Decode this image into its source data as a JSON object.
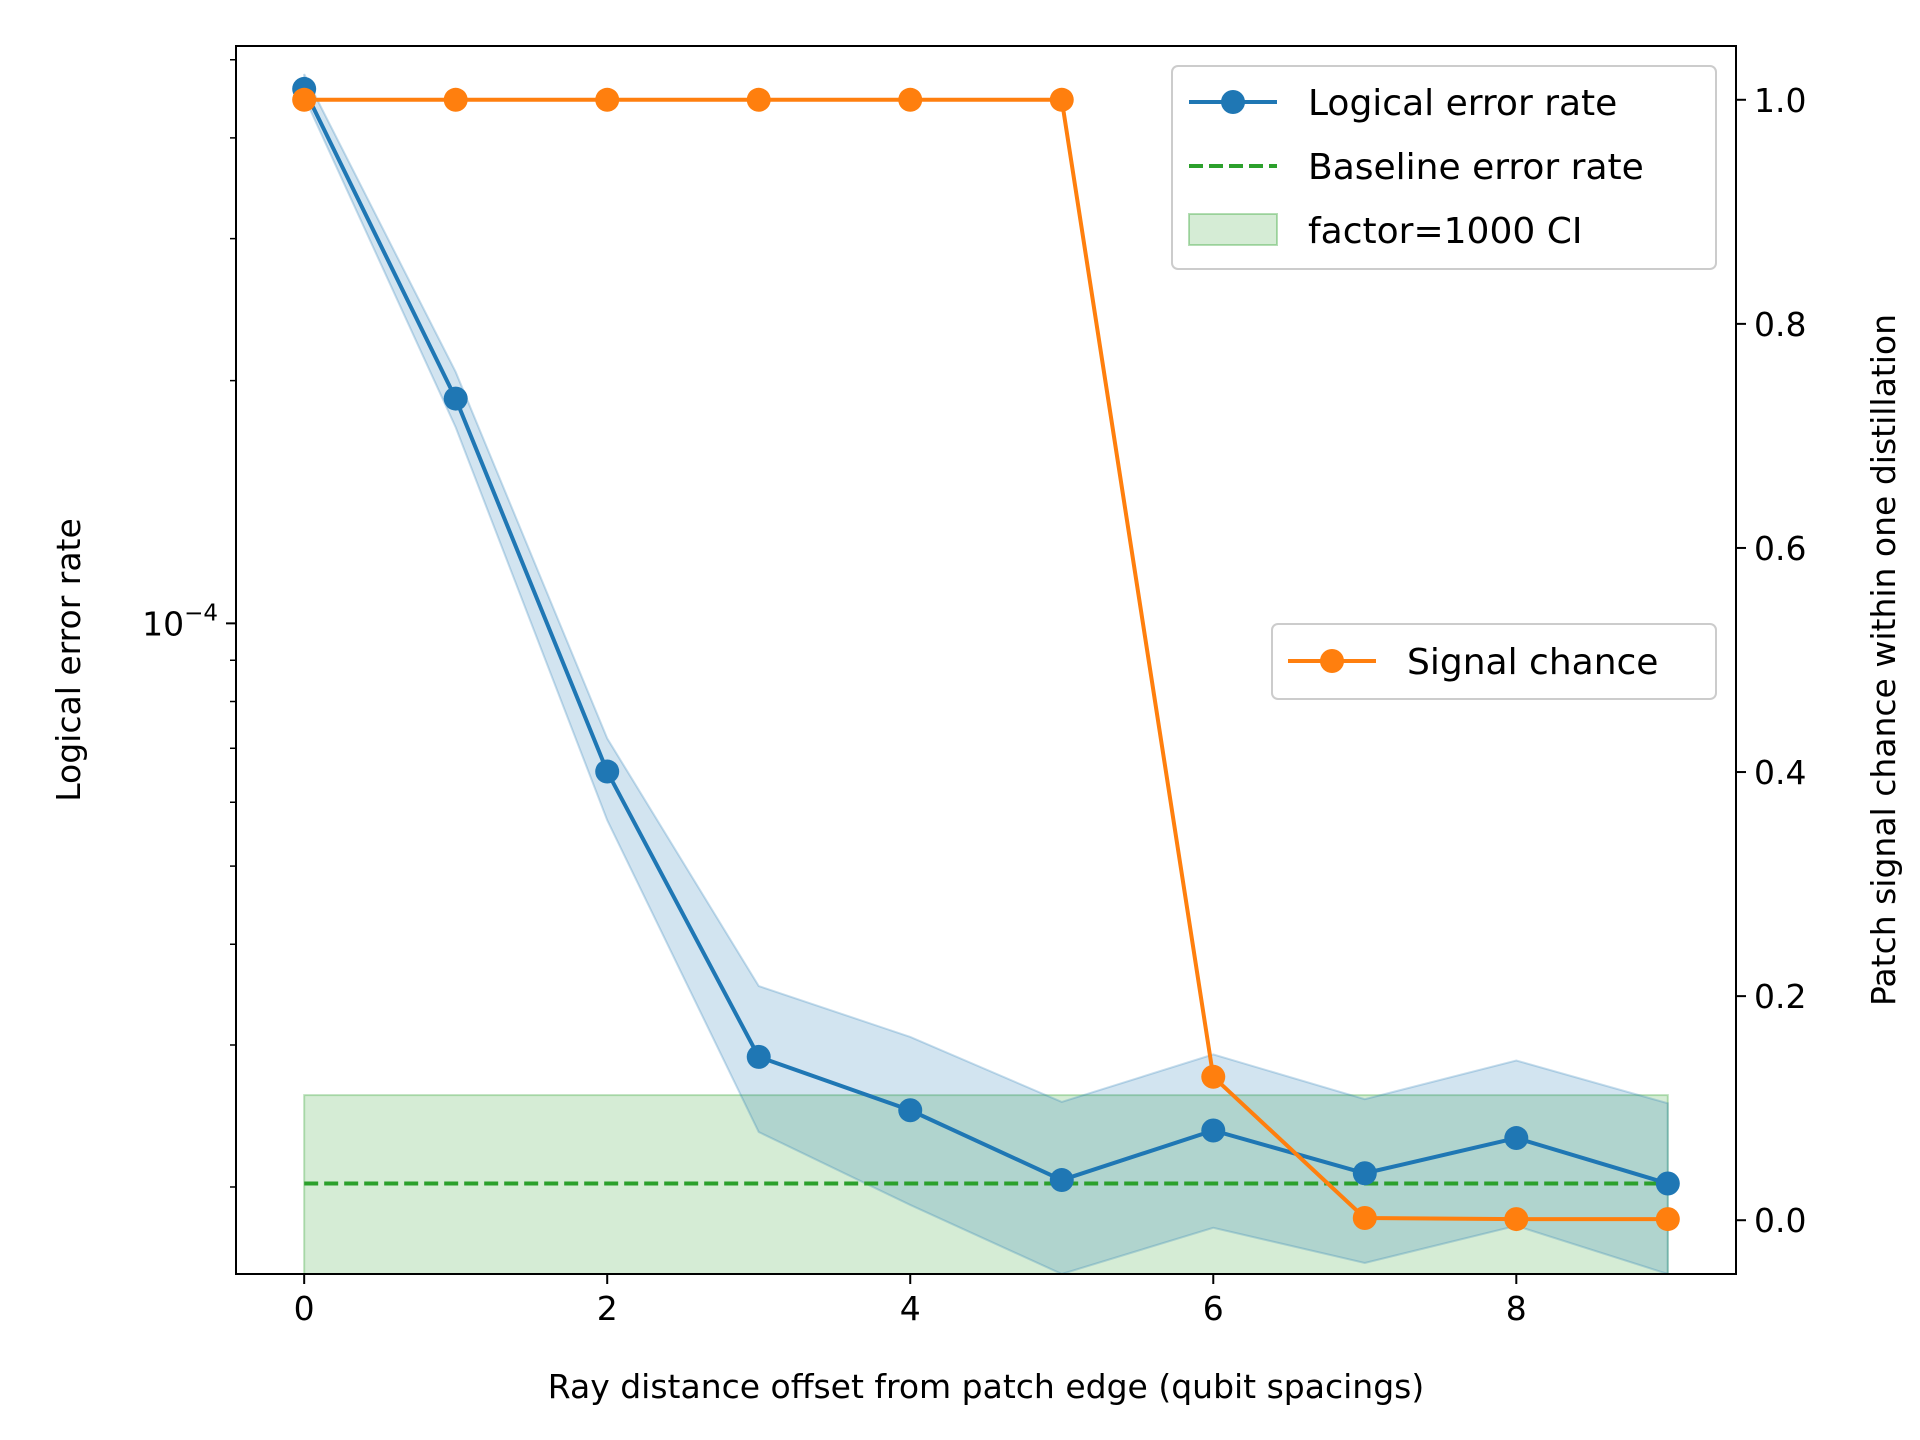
{
  "chart_data": {
    "type": "line",
    "xlabel": "Ray distance offset from patch edge (qubit spacings)",
    "ylabel_left": "Logical error rate",
    "ylabel_right": "Patch signal chance within one distillation",
    "x_ticks": [
      "0",
      "2",
      "4",
      "6",
      "8"
    ],
    "y_left_tick_base": "10",
    "y_left_tick_exponent": "−4",
    "y_right_ticks": [
      "0.0",
      "0.2",
      "0.4",
      "0.6",
      "0.8",
      "1.0"
    ],
    "x_range": [
      -0.45,
      9.45
    ],
    "y_left_scale": "log",
    "y_left_range": [
      1.56e-05,
      0.00052
    ],
    "y_right_range": [
      -0.048,
      1.048
    ],
    "grid": false,
    "x": [
      0,
      1,
      2,
      3,
      4,
      5,
      6,
      7,
      8,
      9
    ],
    "series": [
      {
        "name": "Logical error rate",
        "axis": "left",
        "color": "#1f77b4",
        "values": [
          0.00046,
          0.00019,
          6.55e-05,
          2.9e-05,
          2.49e-05,
          2.04e-05,
          2.35e-05,
          2.08e-05,
          2.3e-05,
          2.02e-05
        ],
        "band_lower": [
          0.00045,
          0.000175,
          5.7e-05,
          2.34e-05,
          1.9e-05,
          1.56e-05,
          1.78e-05,
          1.61e-05,
          1.79e-05,
          1.56e-05
        ],
        "band_upper": [
          0.00048,
          0.000205,
          7.2e-05,
          3.55e-05,
          3.07e-05,
          2.55e-05,
          2.92e-05,
          2.57e-05,
          2.87e-05,
          2.54e-05
        ]
      },
      {
        "name": "Baseline error rate",
        "axis": "left",
        "color": "#2ca02c",
        "style": "dashed",
        "value": 2.02e-05,
        "x_span": [
          0,
          9
        ]
      },
      {
        "name": "factor=1000 CI",
        "axis": "left",
        "color": "#2ca02c",
        "type": "band",
        "lower": 1.56e-05,
        "upper": 2.6e-05,
        "x_span": [
          0,
          9
        ]
      },
      {
        "name": "Signal chance",
        "axis": "right",
        "color": "#ff7f0e",
        "values": [
          1.0,
          1.0,
          1.0,
          1.0,
          1.0,
          1.0,
          0.128,
          0.002,
          0.001,
          0.001
        ]
      }
    ],
    "legends": [
      {
        "placement": "upper-right",
        "entries": [
          "Logical error rate",
          "Baseline error rate",
          "factor=1000 CI"
        ]
      },
      {
        "placement": "center-right",
        "entries": [
          "Signal chance"
        ]
      }
    ]
  }
}
